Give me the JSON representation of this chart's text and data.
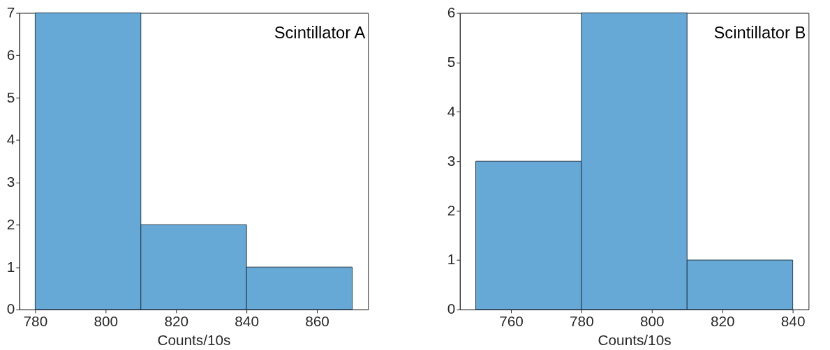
{
  "chart_data": [
    {
      "type": "histogram",
      "title": "Scintillator A",
      "xlabel": "Counts/10s",
      "bins": [
        780,
        810,
        840,
        870
      ],
      "values": [
        7,
        2,
        1
      ],
      "color": "#66a9d6",
      "xlim": [
        775.5,
        874.5
      ],
      "xticks": [
        780,
        800,
        820,
        840,
        860
      ],
      "ylim": [
        0,
        7
      ],
      "yticks": [
        0,
        1,
        2,
        3,
        4,
        5,
        6,
        7
      ],
      "grid": false
    },
    {
      "type": "histogram",
      "title": "Scintillator B",
      "xlabel": "Counts/10s",
      "bins": [
        750,
        780,
        810,
        840
      ],
      "values": [
        3,
        6,
        1
      ],
      "color": "#66a9d6",
      "xlim": [
        745.5,
        844.5
      ],
      "xticks": [
        760,
        780,
        800,
        820,
        840
      ],
      "ylim": [
        0,
        6
      ],
      "yticks": [
        0,
        1,
        2,
        3,
        4,
        5,
        6
      ],
      "grid": false
    }
  ]
}
